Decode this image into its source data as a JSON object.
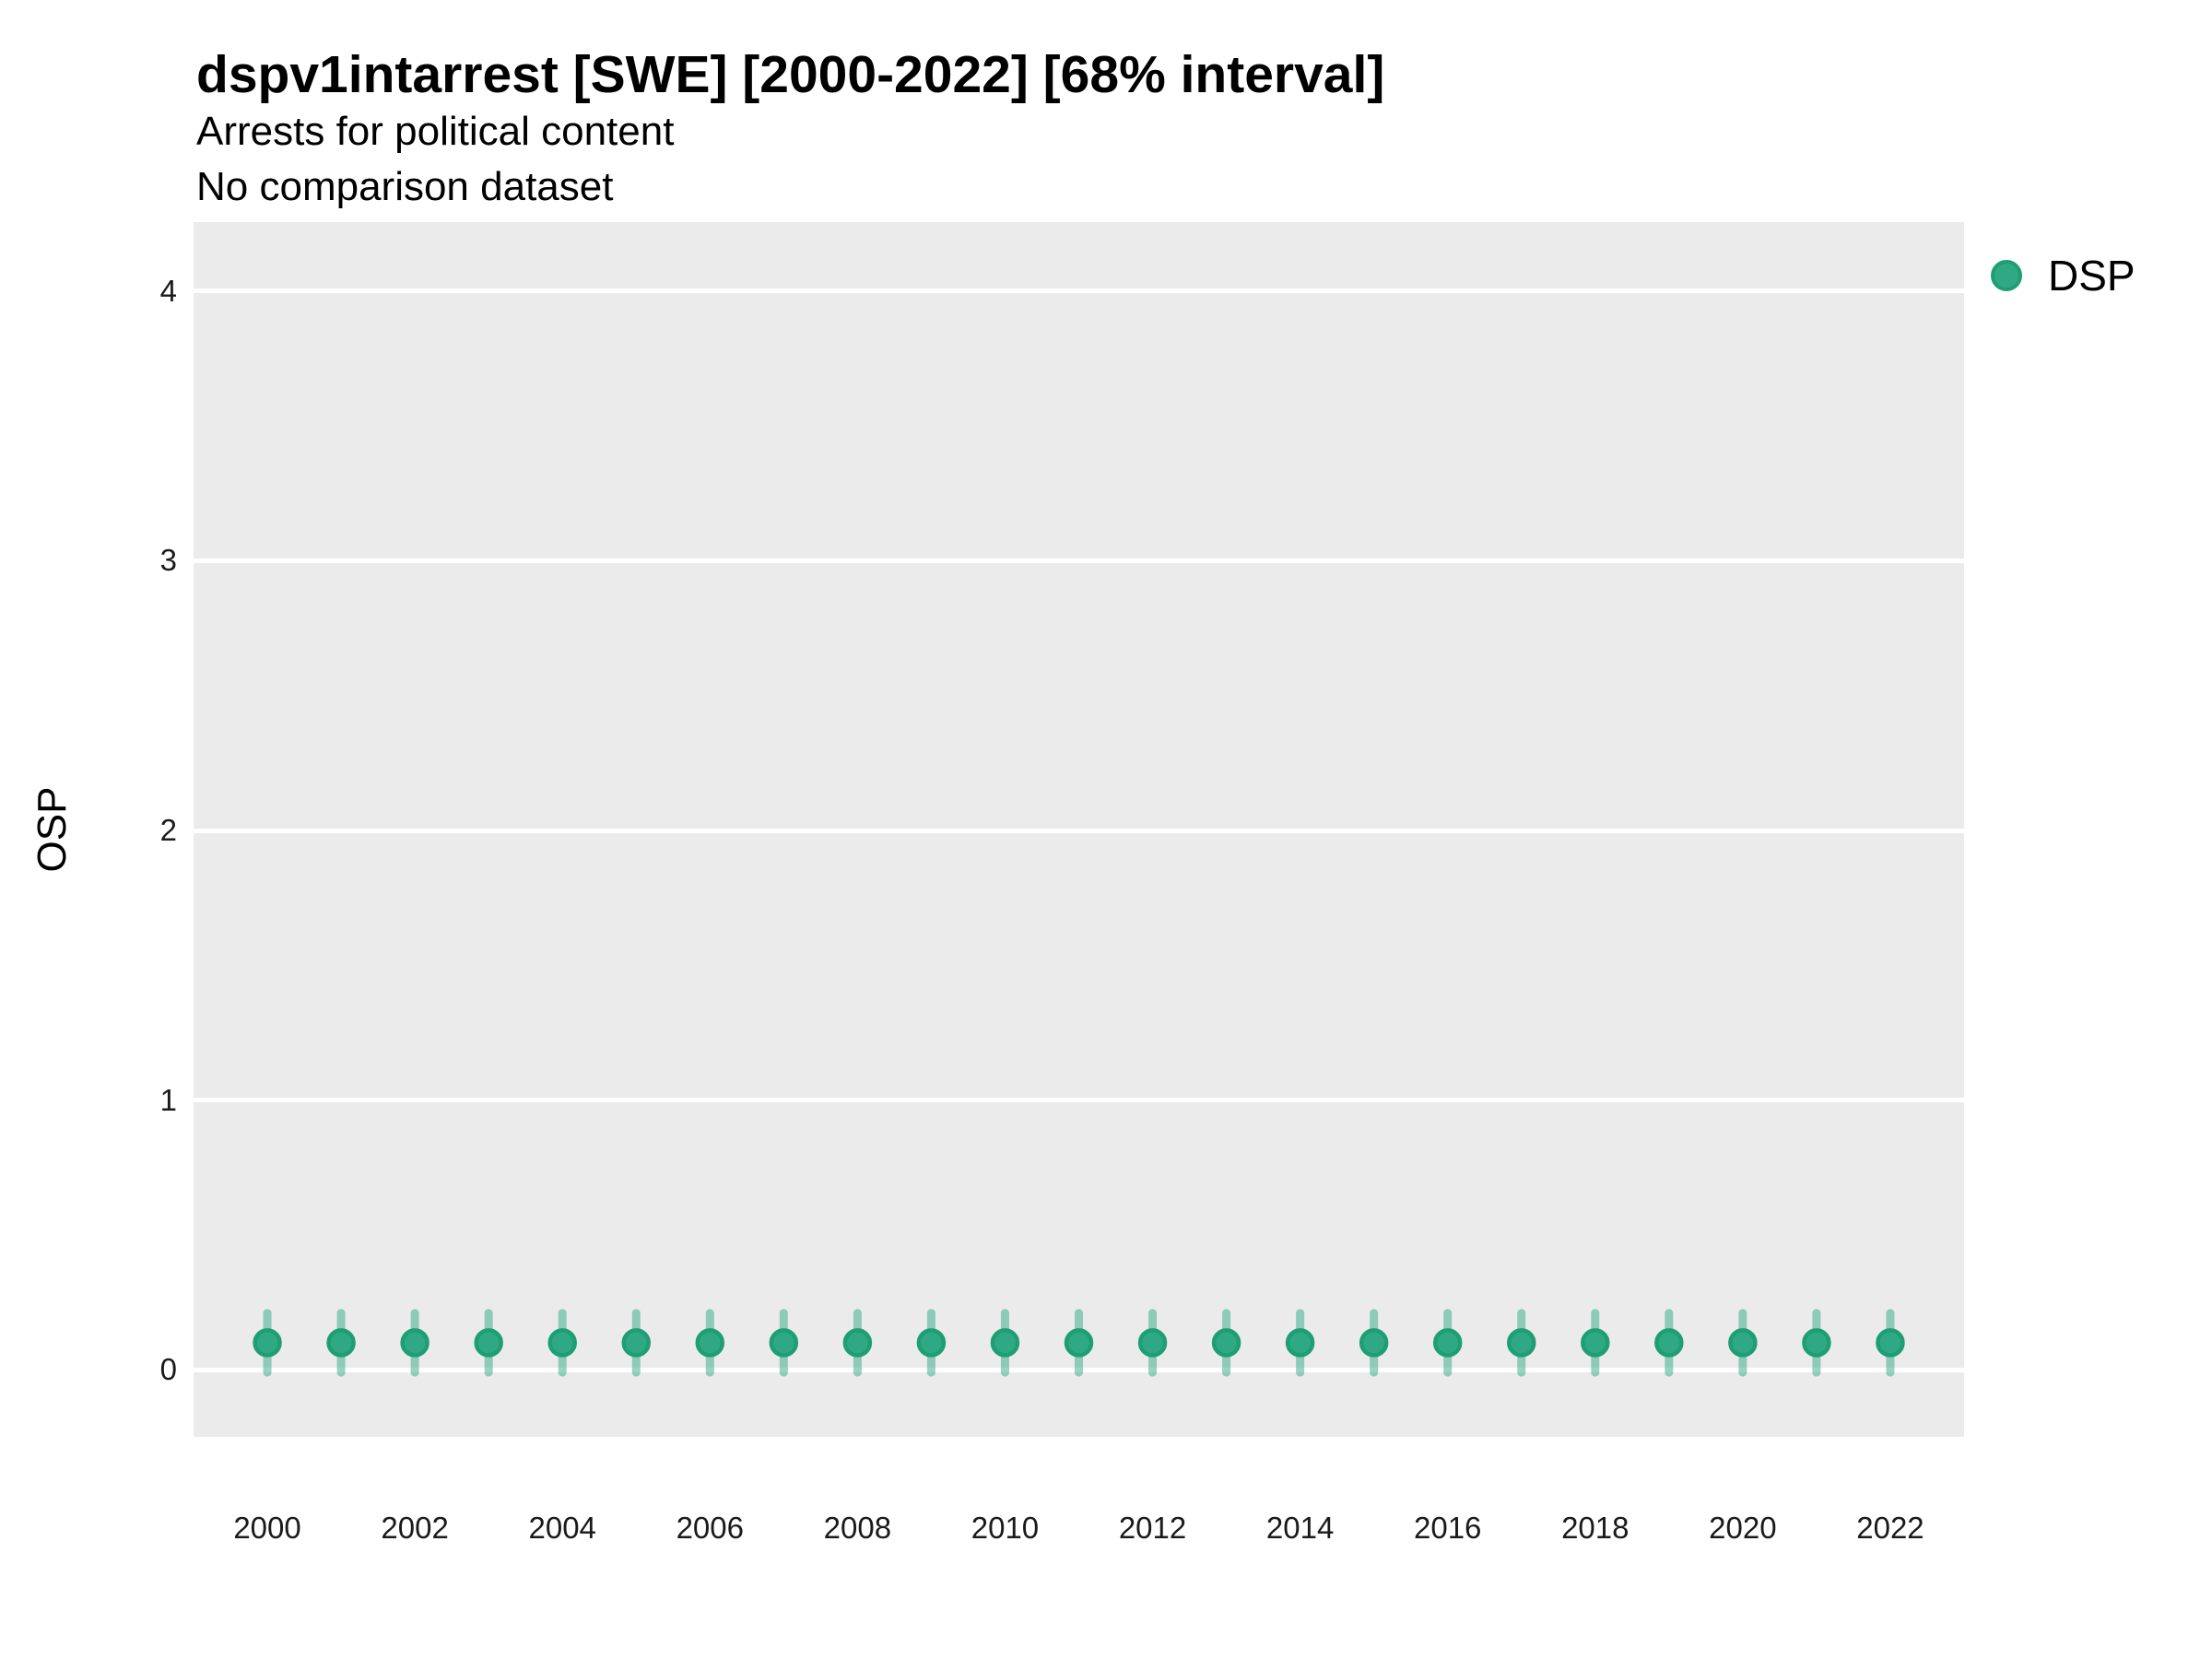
{
  "chart_data": {
    "type": "scatter",
    "title": "dspv1intarrest [SWE] [2000-2022] [68% interval]",
    "subtitle_line1": "Arrests for political content",
    "subtitle_line2": "No comparison dataset",
    "ylabel": "OSP",
    "xlabel": "",
    "legend": [
      {
        "name": "DSP",
        "marker": "circle-icon"
      }
    ],
    "legend_position": "top-right",
    "grid": "horizontal-major-only",
    "xlim": [
      1999.0,
      2023.0
    ],
    "ylim": [
      -0.249,
      4.256
    ],
    "yticks": [
      0,
      1,
      2,
      3,
      4
    ],
    "ytick_labels": [
      "0",
      "1",
      "2",
      "3",
      "4"
    ],
    "xticks": [
      2000,
      2002,
      2004,
      2006,
      2008,
      2010,
      2012,
      2014,
      2016,
      2018,
      2020,
      2022
    ],
    "xtick_labels": [
      "2000",
      "2002",
      "2004",
      "2006",
      "2008",
      "2010",
      "2012",
      "2014",
      "2016",
      "2018",
      "2020",
      "2022"
    ],
    "series": [
      {
        "name": "DSP",
        "points": [
          {
            "year": 2000,
            "y": 0.1,
            "ylow": -0.01,
            "yhigh": 0.21
          },
          {
            "year": 2001,
            "y": 0.1,
            "ylow": -0.01,
            "yhigh": 0.21
          },
          {
            "year": 2002,
            "y": 0.1,
            "ylow": -0.01,
            "yhigh": 0.21
          },
          {
            "year": 2003,
            "y": 0.1,
            "ylow": -0.01,
            "yhigh": 0.21
          },
          {
            "year": 2004,
            "y": 0.1,
            "ylow": -0.01,
            "yhigh": 0.21
          },
          {
            "year": 2005,
            "y": 0.1,
            "ylow": -0.01,
            "yhigh": 0.21
          },
          {
            "year": 2006,
            "y": 0.1,
            "ylow": -0.01,
            "yhigh": 0.21
          },
          {
            "year": 2007,
            "y": 0.1,
            "ylow": -0.01,
            "yhigh": 0.21
          },
          {
            "year": 2008,
            "y": 0.1,
            "ylow": -0.01,
            "yhigh": 0.21
          },
          {
            "year": 2009,
            "y": 0.1,
            "ylow": -0.01,
            "yhigh": 0.21
          },
          {
            "year": 2010,
            "y": 0.1,
            "ylow": -0.01,
            "yhigh": 0.21
          },
          {
            "year": 2011,
            "y": 0.1,
            "ylow": -0.01,
            "yhigh": 0.21
          },
          {
            "year": 2012,
            "y": 0.1,
            "ylow": -0.01,
            "yhigh": 0.21
          },
          {
            "year": 2013,
            "y": 0.1,
            "ylow": -0.01,
            "yhigh": 0.21
          },
          {
            "year": 2014,
            "y": 0.1,
            "ylow": -0.01,
            "yhigh": 0.21
          },
          {
            "year": 2015,
            "y": 0.1,
            "ylow": -0.01,
            "yhigh": 0.21
          },
          {
            "year": 2016,
            "y": 0.1,
            "ylow": -0.01,
            "yhigh": 0.21
          },
          {
            "year": 2017,
            "y": 0.1,
            "ylow": -0.01,
            "yhigh": 0.21
          },
          {
            "year": 2018,
            "y": 0.1,
            "ylow": -0.01,
            "yhigh": 0.21
          },
          {
            "year": 2019,
            "y": 0.1,
            "ylow": -0.01,
            "yhigh": 0.21
          },
          {
            "year": 2020,
            "y": 0.1,
            "ylow": -0.01,
            "yhigh": 0.21
          },
          {
            "year": 2021,
            "y": 0.1,
            "ylow": -0.01,
            "yhigh": 0.21
          },
          {
            "year": 2022,
            "y": 0.1,
            "ylow": -0.01,
            "yhigh": 0.21
          }
        ]
      }
    ],
    "colors": {
      "point_fill": "#2FA983",
      "point_stroke": "#1F9E73",
      "error_bar": "#2FA983",
      "error_bar_opacity": 0.5,
      "panel_background": "#EBEBEB",
      "gridline": "#FFFFFF",
      "text": "#000000",
      "tick_text": "#1a1a1a"
    }
  }
}
